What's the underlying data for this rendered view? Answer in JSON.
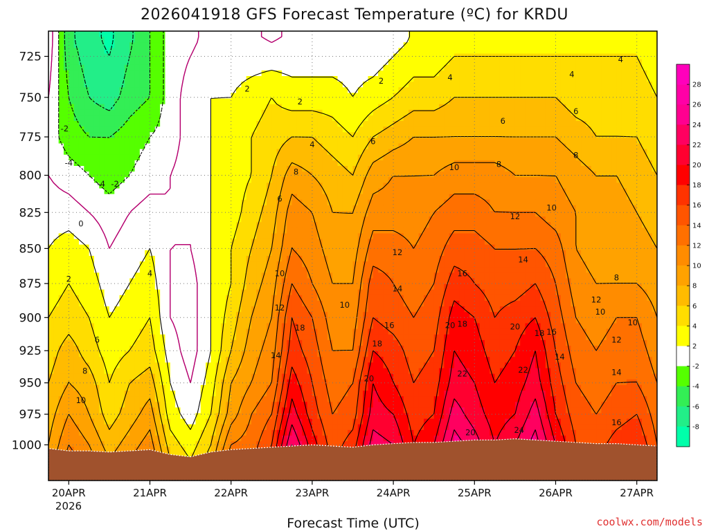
{
  "chart_data": {
    "type": "heatmap",
    "title": "2026041918 GFS Forecast Temperature (ºC) for KRDU",
    "xlabel": "Forecast Time (UTC)",
    "ylabel": "",
    "credit": "coolwx.com/models",
    "y_scale": "log-pressure (inverted)",
    "ylim_hPa": [
      1030,
      710
    ],
    "xlim_days": [
      0.0,
      7.5
    ],
    "y_ticks": [
      725,
      750,
      775,
      800,
      825,
      850,
      875,
      900,
      925,
      950,
      975,
      1000
    ],
    "x_ticks": [
      {
        "day": 0.25,
        "label": "20APR"
      },
      {
        "day": 1.25,
        "label": "21APR"
      },
      {
        "day": 2.25,
        "label": "22APR"
      },
      {
        "day": 3.25,
        "label": "23APR"
      },
      {
        "day": 4.25,
        "label": "24APR"
      },
      {
        "day": 5.25,
        "label": "25APR"
      },
      {
        "day": 6.25,
        "label": "26APR"
      },
      {
        "day": 7.25,
        "label": "27APR"
      }
    ],
    "x_year_label": "2026",
    "colorbar": {
      "ticks": [
        28,
        26,
        24,
        22,
        20,
        18,
        16,
        14,
        12,
        10,
        8,
        6,
        4,
        2,
        -2,
        -4,
        -6,
        -8
      ],
      "bands": [
        {
          "min": 28,
          "max": 30,
          "color": "#ff00bb"
        },
        {
          "min": 26,
          "max": 28,
          "color": "#ff00a6"
        },
        {
          "min": 24,
          "max": 26,
          "color": "#ff0090"
        },
        {
          "min": 22,
          "max": 24,
          "color": "#ff0060"
        },
        {
          "min": 20,
          "max": 22,
          "color": "#ff0030"
        },
        {
          "min": 18,
          "max": 20,
          "color": "#ff0000"
        },
        {
          "min": 16,
          "max": 18,
          "color": "#ff3300"
        },
        {
          "min": 14,
          "max": 16,
          "color": "#ff5500"
        },
        {
          "min": 12,
          "max": 14,
          "color": "#ff7000"
        },
        {
          "min": 10,
          "max": 12,
          "color": "#ff8c00"
        },
        {
          "min": 8,
          "max": 10,
          "color": "#ffa200"
        },
        {
          "min": 6,
          "max": 8,
          "color": "#ffbb00"
        },
        {
          "min": 4,
          "max": 6,
          "color": "#ffdd00"
        },
        {
          "min": 2,
          "max": 4,
          "color": "#ffff00"
        },
        {
          "min": -2,
          "max": 2,
          "color": "#ffffff"
        },
        {
          "min": -4,
          "max": -2,
          "color": "#55ff00"
        },
        {
          "min": -6,
          "max": -4,
          "color": "#33ee55"
        },
        {
          "min": -8,
          "max": -6,
          "color": "#22ee88"
        },
        {
          "min": -10,
          "max": -8,
          "color": "#00ffaa"
        }
      ]
    },
    "series_time_days": [
      0.0,
      0.25,
      0.5,
      0.75,
      1.0,
      1.25,
      1.5,
      1.75,
      2.0,
      2.25,
      2.5,
      2.75,
      3.0,
      3.25,
      3.5,
      3.75,
      4.0,
      4.25,
      4.5,
      4.75,
      5.0,
      5.25,
      5.5,
      5.75,
      6.0,
      6.25,
      6.5,
      6.75,
      7.0,
      7.25,
      7.5
    ],
    "surface_pressure_hPa": [
      1003,
      1005,
      1005,
      1006,
      1005,
      1004,
      1008,
      1010,
      1006,
      1004,
      1003,
      1002,
      1001,
      1000,
      1001,
      1002,
      1000,
      999,
      998,
      998,
      997,
      996,
      996,
      995,
      996,
      997,
      998,
      999,
      999,
      1000,
      1001
    ],
    "temperature_by_level": [
      {
        "p": 1000,
        "t": [
          8,
          12,
          10,
          7,
          9,
          11,
          5,
          3,
          6,
          12,
          13,
          16,
          24,
          19,
          15,
          17,
          23,
          22,
          18,
          20,
          25,
          23,
          20,
          22,
          25,
          20,
          16,
          15,
          17,
          18,
          14
        ]
      },
      {
        "p": 975,
        "t": [
          7,
          10,
          8,
          5,
          7,
          9,
          3,
          1,
          4,
          9,
          12,
          14,
          21,
          17,
          14,
          15,
          21,
          20,
          17,
          18,
          23,
          21,
          19,
          20,
          23,
          18,
          15,
          14,
          15,
          16,
          13
        ]
      },
      {
        "p": 950,
        "t": [
          6,
          8,
          7,
          4,
          6,
          7,
          2,
          0,
          3,
          8,
          10,
          12,
          19,
          16,
          13,
          14,
          20,
          18,
          16,
          17,
          21,
          20,
          18,
          19,
          21,
          17,
          14,
          13,
          14,
          14,
          12
        ]
      },
      {
        "p": 925,
        "t": [
          5,
          7,
          5,
          3,
          4,
          5,
          1,
          -1,
          2,
          6,
          9,
          11,
          17,
          15,
          12,
          12,
          18,
          17,
          15,
          16,
          20,
          19,
          17,
          18,
          20,
          16,
          13,
          12,
          13,
          13,
          11
        ]
      },
      {
        "p": 900,
        "t": [
          4,
          5,
          4,
          2,
          3,
          4,
          0,
          -1,
          2,
          5,
          8,
          10,
          16,
          14,
          11,
          11,
          16,
          15,
          14,
          15,
          19,
          18,
          16,
          17,
          18,
          15,
          12,
          11,
          12,
          12,
          10
        ]
      },
      {
        "p": 875,
        "t": [
          3,
          4,
          3,
          1,
          2,
          3,
          0,
          -1,
          2,
          4,
          7,
          9,
          14,
          12,
          10,
          10,
          15,
          14,
          13,
          14,
          17,
          16,
          15,
          15,
          16,
          14,
          11,
          10,
          10,
          10,
          9
        ]
      },
      {
        "p": 850,
        "t": [
          2,
          3,
          2,
          0,
          1,
          2,
          0,
          0,
          2,
          4,
          6,
          8,
          12,
          11,
          9,
          9,
          13,
          13,
          12,
          13,
          15,
          15,
          14,
          14,
          14,
          13,
          10,
          9,
          9,
          9,
          8
        ]
      },
      {
        "p": 825,
        "t": [
          1,
          1,
          0,
          -1,
          0,
          1,
          0,
          0,
          2,
          3,
          5,
          7,
          11,
          10,
          8,
          8,
          11,
          11,
          11,
          12,
          13,
          13,
          12,
          12,
          12,
          11,
          10,
          9,
          9,
          8,
          7
        ]
      },
      {
        "p": 800,
        "t": [
          0,
          -1,
          -2,
          -3,
          -2,
          -1,
          0,
          1,
          2,
          3,
          4,
          6,
          9,
          8,
          7,
          6,
          9,
          10,
          10,
          10,
          11,
          11,
          11,
          10,
          10,
          10,
          9,
          8,
          8,
          7,
          6
        ]
      },
      {
        "p": 775,
        "t": [
          -1,
          -3,
          -4,
          -4,
          -3,
          -2,
          -1,
          1,
          2,
          3,
          4,
          5,
          6,
          6,
          5,
          4,
          6,
          7,
          8,
          8,
          8,
          8,
          8,
          8,
          8,
          8,
          7,
          6,
          6,
          6,
          5
        ]
      },
      {
        "p": 750,
        "t": [
          0,
          -4,
          -6,
          -7,
          -5,
          -4,
          -1,
          1,
          2,
          2,
          3,
          4,
          3,
          3,
          3,
          2,
          3,
          4,
          5,
          5,
          6,
          6,
          6,
          6,
          6,
          6,
          5,
          5,
          5,
          5,
          4
        ]
      },
      {
        "p": 725,
        "t": [
          1,
          -5,
          -7,
          -8,
          -6,
          -4,
          -1,
          0,
          1,
          1,
          1,
          1,
          1,
          1,
          1,
          1,
          1,
          2,
          3,
          3,
          4,
          4,
          4,
          4,
          4,
          4,
          4,
          4,
          4,
          4,
          3
        ]
      }
    ],
    "contour_labels": [
      {
        "day": 0.2,
        "p": 770,
        "text": "-2"
      },
      {
        "day": 0.25,
        "p": 792,
        "text": "-4"
      },
      {
        "day": 0.65,
        "p": 806,
        "text": "-4"
      },
      {
        "day": 0.82,
        "p": 806,
        "text": "-2"
      },
      {
        "day": 0.4,
        "p": 833,
        "text": "0"
      },
      {
        "day": 0.25,
        "p": 872,
        "text": "2"
      },
      {
        "day": 0.6,
        "p": 917,
        "text": "6"
      },
      {
        "day": 0.45,
        "p": 941,
        "text": "8"
      },
      {
        "day": 0.4,
        "p": 964,
        "text": "10"
      },
      {
        "day": 1.25,
        "p": 868,
        "text": "4"
      },
      {
        "day": 2.45,
        "p": 745,
        "text": "2"
      },
      {
        "day": 2.85,
        "p": 816,
        "text": "6"
      },
      {
        "day": 2.85,
        "p": 868,
        "text": "10"
      },
      {
        "day": 2.85,
        "p": 893,
        "text": "12"
      },
      {
        "day": 2.8,
        "p": 929,
        "text": "14"
      },
      {
        "day": 3.05,
        "p": 798,
        "text": "8"
      },
      {
        "day": 3.1,
        "p": 908,
        "text": "18"
      },
      {
        "day": 3.1,
        "p": 753,
        "text": "2"
      },
      {
        "day": 3.25,
        "p": 780,
        "text": "4"
      },
      {
        "day": 3.65,
        "p": 891,
        "text": "10"
      },
      {
        "day": 4.0,
        "p": 778,
        "text": "6"
      },
      {
        "day": 4.3,
        "p": 853,
        "text": "12"
      },
      {
        "day": 4.3,
        "p": 879,
        "text": "14"
      },
      {
        "day": 4.2,
        "p": 906,
        "text": "16"
      },
      {
        "day": 4.05,
        "p": 920,
        "text": "18"
      },
      {
        "day": 3.95,
        "p": 947,
        "text": "20"
      },
      {
        "day": 4.1,
        "p": 740,
        "text": "2"
      },
      {
        "day": 4.95,
        "p": 738,
        "text": "4"
      },
      {
        "day": 5.0,
        "p": 795,
        "text": "10"
      },
      {
        "day": 5.1,
        "p": 868,
        "text": "16"
      },
      {
        "day": 4.95,
        "p": 906,
        "text": "20"
      },
      {
        "day": 5.1,
        "p": 905,
        "text": "18"
      },
      {
        "day": 5.1,
        "p": 943,
        "text": "22"
      },
      {
        "day": 5.2,
        "p": 990,
        "text": "20"
      },
      {
        "day": 5.6,
        "p": 765,
        "text": "6"
      },
      {
        "day": 5.55,
        "p": 793,
        "text": "8"
      },
      {
        "day": 5.75,
        "p": 828,
        "text": "12"
      },
      {
        "day": 5.85,
        "p": 858,
        "text": "14"
      },
      {
        "day": 5.75,
        "p": 907,
        "text": "20"
      },
      {
        "day": 5.8,
        "p": 988,
        "text": "24"
      },
      {
        "day": 5.85,
        "p": 940,
        "text": "22"
      },
      {
        "day": 6.05,
        "p": 912,
        "text": "18"
      },
      {
        "day": 6.2,
        "p": 822,
        "text": "10"
      },
      {
        "day": 6.2,
        "p": 911,
        "text": "16"
      },
      {
        "day": 6.3,
        "p": 930,
        "text": "14"
      },
      {
        "day": 6.45,
        "p": 736,
        "text": "4"
      },
      {
        "day": 6.5,
        "p": 759,
        "text": "6"
      },
      {
        "day": 6.5,
        "p": 787,
        "text": "8"
      },
      {
        "day": 6.75,
        "p": 887,
        "text": "12"
      },
      {
        "day": 6.8,
        "p": 896,
        "text": "10"
      },
      {
        "day": 7.05,
        "p": 727,
        "text": "4"
      },
      {
        "day": 7.0,
        "p": 871,
        "text": "8"
      },
      {
        "day": 7.2,
        "p": 904,
        "text": "10"
      },
      {
        "day": 7.0,
        "p": 917,
        "text": "12"
      },
      {
        "day": 7.0,
        "p": 942,
        "text": "14"
      },
      {
        "day": 7.0,
        "p": 982,
        "text": "16"
      }
    ],
    "colors": {
      "ground": "#a0522d",
      "contour_line": "#000000",
      "freezing_line": "#b5006f",
      "grid": "#777777",
      "credit_text": "#e03030"
    }
  }
}
